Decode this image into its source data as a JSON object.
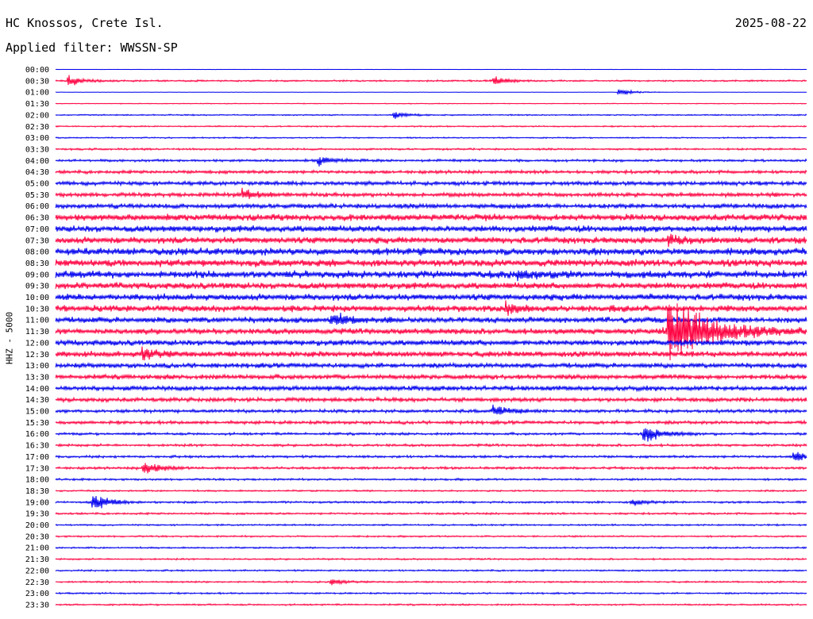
{
  "header": {
    "station": "HC Knossos, Crete Isl.",
    "date": "2025-08-22",
    "filter": "Applied filter: WWSSN-SP"
  },
  "chart_data": {
    "type": "line",
    "title": "HC Knossos, Crete Isl.",
    "subtitle": "Applied filter: WWSSN-SP",
    "date": "2025-08-22",
    "ylabel": "HHZ - 5000",
    "xlabel": "",
    "grid": false,
    "legend": "none",
    "trace_interval_minutes": 30,
    "colors": [
      "#0000ee",
      "#ff0040"
    ],
    "rows": [
      "00:00",
      "00:30",
      "01:00",
      "01:30",
      "02:00",
      "02:30",
      "03:00",
      "03:30",
      "04:00",
      "04:30",
      "05:00",
      "05:30",
      "06:00",
      "06:30",
      "07:00",
      "07:30",
      "08:00",
      "08:30",
      "09:00",
      "09:30",
      "10:00",
      "10:30",
      "11:00",
      "11:30",
      "12:00",
      "12:30",
      "13:00",
      "13:30",
      "14:00",
      "14:30",
      "15:00",
      "15:30",
      "16:00",
      "16:30",
      "17:00",
      "17:30",
      "18:00",
      "18:30",
      "19:00",
      "19:30",
      "20:00",
      "20:30",
      "21:00",
      "21:30",
      "22:00",
      "22:30",
      "23:00",
      "23:30"
    ],
    "noise_level": [
      0.2,
      1.0,
      0.2,
      0.5,
      0.8,
      0.8,
      0.8,
      1.2,
      1.5,
      2.0,
      2.5,
      2.5,
      3.0,
      4.0,
      4.0,
      4.0,
      4.5,
      4.5,
      4.5,
      4.0,
      4.0,
      4.0,
      3.5,
      3.5,
      3.5,
      3.5,
      3.0,
      3.0,
      3.0,
      2.5,
      2.0,
      2.0,
      1.5,
      1.5,
      1.5,
      1.5,
      1.2,
      1.0,
      1.2,
      1.2,
      1.0,
      1.0,
      1.0,
      1.0,
      1.0,
      1.0,
      1.0,
      1.0
    ],
    "events": [
      {
        "row": "00:30",
        "minute": 0.5,
        "amplitude": 8
      },
      {
        "row": "00:30",
        "minute": 17.5,
        "amplitude": 6
      },
      {
        "row": "01:00",
        "minute": 22.5,
        "amplitude": 6
      },
      {
        "row": "02:00",
        "minute": 13.5,
        "amplitude": 6
      },
      {
        "row": "04:00",
        "minute": 10.5,
        "amplitude": 7
      },
      {
        "row": "05:30",
        "minute": 7.5,
        "amplitude": 8
      },
      {
        "row": "07:30",
        "minute": 24.5,
        "amplitude": 6
      },
      {
        "row": "09:00",
        "minute": 18.5,
        "amplitude": 7
      },
      {
        "row": "10:30",
        "minute": 18.0,
        "amplitude": 9
      },
      {
        "row": "11:00",
        "minute": 11.0,
        "amplitude": 10
      },
      {
        "row": "11:30",
        "minute": 24.5,
        "amplitude": 55
      },
      {
        "row": "12:30",
        "minute": 3.5,
        "amplitude": 9
      },
      {
        "row": "15:00",
        "minute": 17.5,
        "amplitude": 9
      },
      {
        "row": "16:00",
        "minute": 23.5,
        "amplitude": 14
      },
      {
        "row": "17:00",
        "minute": 29.5,
        "amplitude": 8
      },
      {
        "row": "17:30",
        "minute": 3.5,
        "amplitude": 10
      },
      {
        "row": "19:00",
        "minute": 1.5,
        "amplitude": 12
      },
      {
        "row": "19:00",
        "minute": 23.0,
        "amplitude": 6
      },
      {
        "row": "22:30",
        "minute": 11.0,
        "amplitude": 5
      }
    ]
  }
}
